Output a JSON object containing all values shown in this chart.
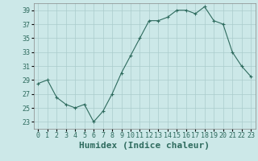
{
  "x": [
    0,
    1,
    2,
    3,
    4,
    5,
    6,
    7,
    8,
    9,
    10,
    11,
    12,
    13,
    14,
    15,
    16,
    17,
    18,
    19,
    20,
    21,
    22,
    23
  ],
  "y": [
    28.5,
    29.0,
    26.5,
    25.5,
    25.0,
    25.5,
    23.0,
    24.5,
    27.0,
    30.0,
    32.5,
    35.0,
    37.5,
    37.5,
    38.0,
    39.0,
    39.0,
    38.5,
    39.5,
    37.5,
    37.0,
    33.0,
    31.0,
    29.5
  ],
  "xlabel": "Humidex (Indice chaleur)",
  "xlim": [
    -0.5,
    23.5
  ],
  "ylim": [
    22,
    40
  ],
  "yticks": [
    23,
    25,
    27,
    29,
    31,
    33,
    35,
    37,
    39
  ],
  "xticks": [
    0,
    1,
    2,
    3,
    4,
    5,
    6,
    7,
    8,
    9,
    10,
    11,
    12,
    13,
    14,
    15,
    16,
    17,
    18,
    19,
    20,
    21,
    22,
    23
  ],
  "line_color": "#2e6b5e",
  "marker": "+",
  "bg_color": "#cce8e8",
  "grid_color": "#aacccc",
  "tick_fontsize": 6,
  "xlabel_fontsize": 8
}
